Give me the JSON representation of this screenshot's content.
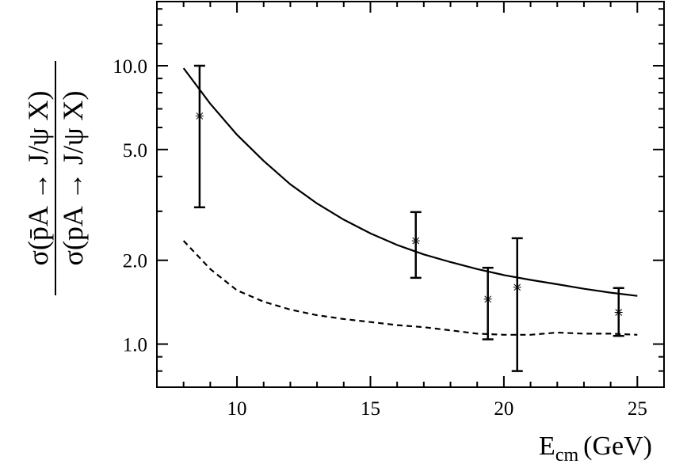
{
  "chart_data": {
    "type": "line",
    "xlabel": "E",
    "xlabel_sub": "cm",
    "xlabel_unit": "(GeV)",
    "ylabel_numerator": "σ(p̄A → J/ψ X)",
    "ylabel_denominator": "σ(pA → J/ψ X)",
    "xlim": [
      7,
      26
    ],
    "ylim": [
      0.7,
      17
    ],
    "yscale": "log",
    "x_ticks": [
      10,
      15,
      20,
      25
    ],
    "x_tick_labels": [
      "10",
      "15",
      "20",
      "25"
    ],
    "y_ticks": [
      1.0,
      2.0,
      5.0,
      10.0
    ],
    "y_tick_labels": [
      "1.0",
      "2.0",
      "5.0",
      "10.0"
    ],
    "series": [
      {
        "style": "solid",
        "x": [
          8,
          9,
          10,
          11,
          12,
          13,
          14,
          15,
          16,
          17,
          18,
          19,
          20,
          21,
          22,
          23,
          24,
          25
        ],
        "y": [
          9.8,
          7.3,
          5.65,
          4.55,
          3.75,
          3.2,
          2.8,
          2.5,
          2.27,
          2.1,
          1.97,
          1.86,
          1.77,
          1.7,
          1.64,
          1.58,
          1.53,
          1.49
        ]
      },
      {
        "style": "dashed",
        "x": [
          8,
          9,
          10,
          11,
          12,
          13,
          14,
          15,
          16,
          17,
          18,
          19,
          20,
          21,
          22,
          23,
          24,
          25
        ],
        "y": [
          2.35,
          1.86,
          1.56,
          1.42,
          1.33,
          1.27,
          1.23,
          1.2,
          1.17,
          1.15,
          1.12,
          1.09,
          1.08,
          1.08,
          1.1,
          1.09,
          1.09,
          1.08
        ]
      }
    ],
    "points": [
      {
        "x": 8.6,
        "y": 6.6,
        "yerr_low": 3.1,
        "yerr_high": 10.0
      },
      {
        "x": 16.7,
        "y": 2.35,
        "yerr_low": 1.73,
        "yerr_high": 2.98
      },
      {
        "x": 19.4,
        "y": 1.45,
        "yerr_low": 1.04,
        "yerr_high": 1.88
      },
      {
        "x": 20.5,
        "y": 1.6,
        "yerr_low": 0.8,
        "yerr_high": 2.4
      },
      {
        "x": 24.3,
        "y": 1.3,
        "yerr_low": 1.07,
        "yerr_high": 1.59
      }
    ]
  }
}
